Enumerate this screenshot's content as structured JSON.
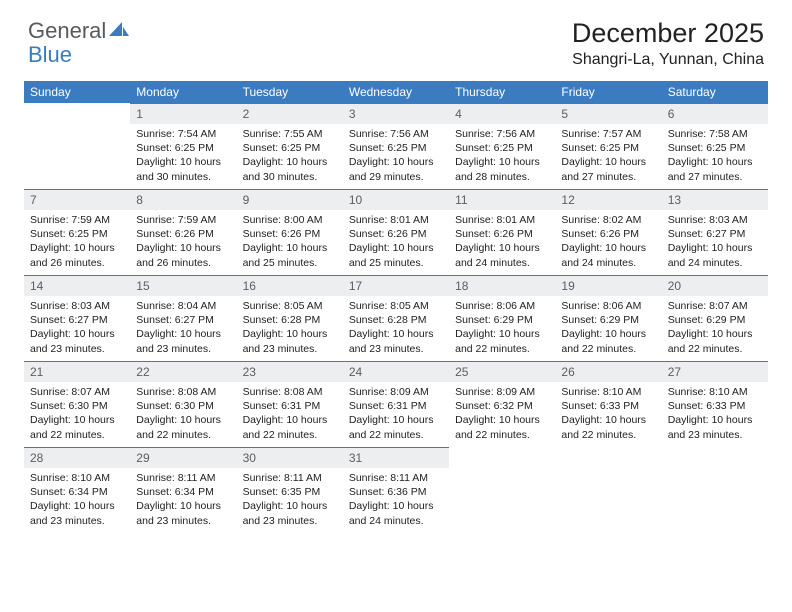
{
  "logo": {
    "text1": "General",
    "text2": "Blue"
  },
  "title": "December 2025",
  "location": "Shangri-La, Yunnan, China",
  "colors": {
    "accent": "#3b7bbf",
    "headerText": "#ffffff",
    "dayNumBg": "#eceeef",
    "dayNumFg": "#5a5f64"
  },
  "weekdays": [
    "Sunday",
    "Monday",
    "Tuesday",
    "Wednesday",
    "Thursday",
    "Friday",
    "Saturday"
  ],
  "startOffset": 1,
  "days": [
    {
      "n": 1,
      "sr": "7:54 AM",
      "ss": "6:25 PM",
      "dl": "10 hours and 30 minutes."
    },
    {
      "n": 2,
      "sr": "7:55 AM",
      "ss": "6:25 PM",
      "dl": "10 hours and 30 minutes."
    },
    {
      "n": 3,
      "sr": "7:56 AM",
      "ss": "6:25 PM",
      "dl": "10 hours and 29 minutes."
    },
    {
      "n": 4,
      "sr": "7:56 AM",
      "ss": "6:25 PM",
      "dl": "10 hours and 28 minutes."
    },
    {
      "n": 5,
      "sr": "7:57 AM",
      "ss": "6:25 PM",
      "dl": "10 hours and 27 minutes."
    },
    {
      "n": 6,
      "sr": "7:58 AM",
      "ss": "6:25 PM",
      "dl": "10 hours and 27 minutes."
    },
    {
      "n": 7,
      "sr": "7:59 AM",
      "ss": "6:25 PM",
      "dl": "10 hours and 26 minutes."
    },
    {
      "n": 8,
      "sr": "7:59 AM",
      "ss": "6:26 PM",
      "dl": "10 hours and 26 minutes."
    },
    {
      "n": 9,
      "sr": "8:00 AM",
      "ss": "6:26 PM",
      "dl": "10 hours and 25 minutes."
    },
    {
      "n": 10,
      "sr": "8:01 AM",
      "ss": "6:26 PM",
      "dl": "10 hours and 25 minutes."
    },
    {
      "n": 11,
      "sr": "8:01 AM",
      "ss": "6:26 PM",
      "dl": "10 hours and 24 minutes."
    },
    {
      "n": 12,
      "sr": "8:02 AM",
      "ss": "6:26 PM",
      "dl": "10 hours and 24 minutes."
    },
    {
      "n": 13,
      "sr": "8:03 AM",
      "ss": "6:27 PM",
      "dl": "10 hours and 24 minutes."
    },
    {
      "n": 14,
      "sr": "8:03 AM",
      "ss": "6:27 PM",
      "dl": "10 hours and 23 minutes."
    },
    {
      "n": 15,
      "sr": "8:04 AM",
      "ss": "6:27 PM",
      "dl": "10 hours and 23 minutes."
    },
    {
      "n": 16,
      "sr": "8:05 AM",
      "ss": "6:28 PM",
      "dl": "10 hours and 23 minutes."
    },
    {
      "n": 17,
      "sr": "8:05 AM",
      "ss": "6:28 PM",
      "dl": "10 hours and 23 minutes."
    },
    {
      "n": 18,
      "sr": "8:06 AM",
      "ss": "6:29 PM",
      "dl": "10 hours and 22 minutes."
    },
    {
      "n": 19,
      "sr": "8:06 AM",
      "ss": "6:29 PM",
      "dl": "10 hours and 22 minutes."
    },
    {
      "n": 20,
      "sr": "8:07 AM",
      "ss": "6:29 PM",
      "dl": "10 hours and 22 minutes."
    },
    {
      "n": 21,
      "sr": "8:07 AM",
      "ss": "6:30 PM",
      "dl": "10 hours and 22 minutes."
    },
    {
      "n": 22,
      "sr": "8:08 AM",
      "ss": "6:30 PM",
      "dl": "10 hours and 22 minutes."
    },
    {
      "n": 23,
      "sr": "8:08 AM",
      "ss": "6:31 PM",
      "dl": "10 hours and 22 minutes."
    },
    {
      "n": 24,
      "sr": "8:09 AM",
      "ss": "6:31 PM",
      "dl": "10 hours and 22 minutes."
    },
    {
      "n": 25,
      "sr": "8:09 AM",
      "ss": "6:32 PM",
      "dl": "10 hours and 22 minutes."
    },
    {
      "n": 26,
      "sr": "8:10 AM",
      "ss": "6:33 PM",
      "dl": "10 hours and 22 minutes."
    },
    {
      "n": 27,
      "sr": "8:10 AM",
      "ss": "6:33 PM",
      "dl": "10 hours and 23 minutes."
    },
    {
      "n": 28,
      "sr": "8:10 AM",
      "ss": "6:34 PM",
      "dl": "10 hours and 23 minutes."
    },
    {
      "n": 29,
      "sr": "8:11 AM",
      "ss": "6:34 PM",
      "dl": "10 hours and 23 minutes."
    },
    {
      "n": 30,
      "sr": "8:11 AM",
      "ss": "6:35 PM",
      "dl": "10 hours and 23 minutes."
    },
    {
      "n": 31,
      "sr": "8:11 AM",
      "ss": "6:36 PM",
      "dl": "10 hours and 24 minutes."
    }
  ],
  "labels": {
    "sunrise": "Sunrise:",
    "sunset": "Sunset:",
    "daylight": "Daylight:"
  }
}
